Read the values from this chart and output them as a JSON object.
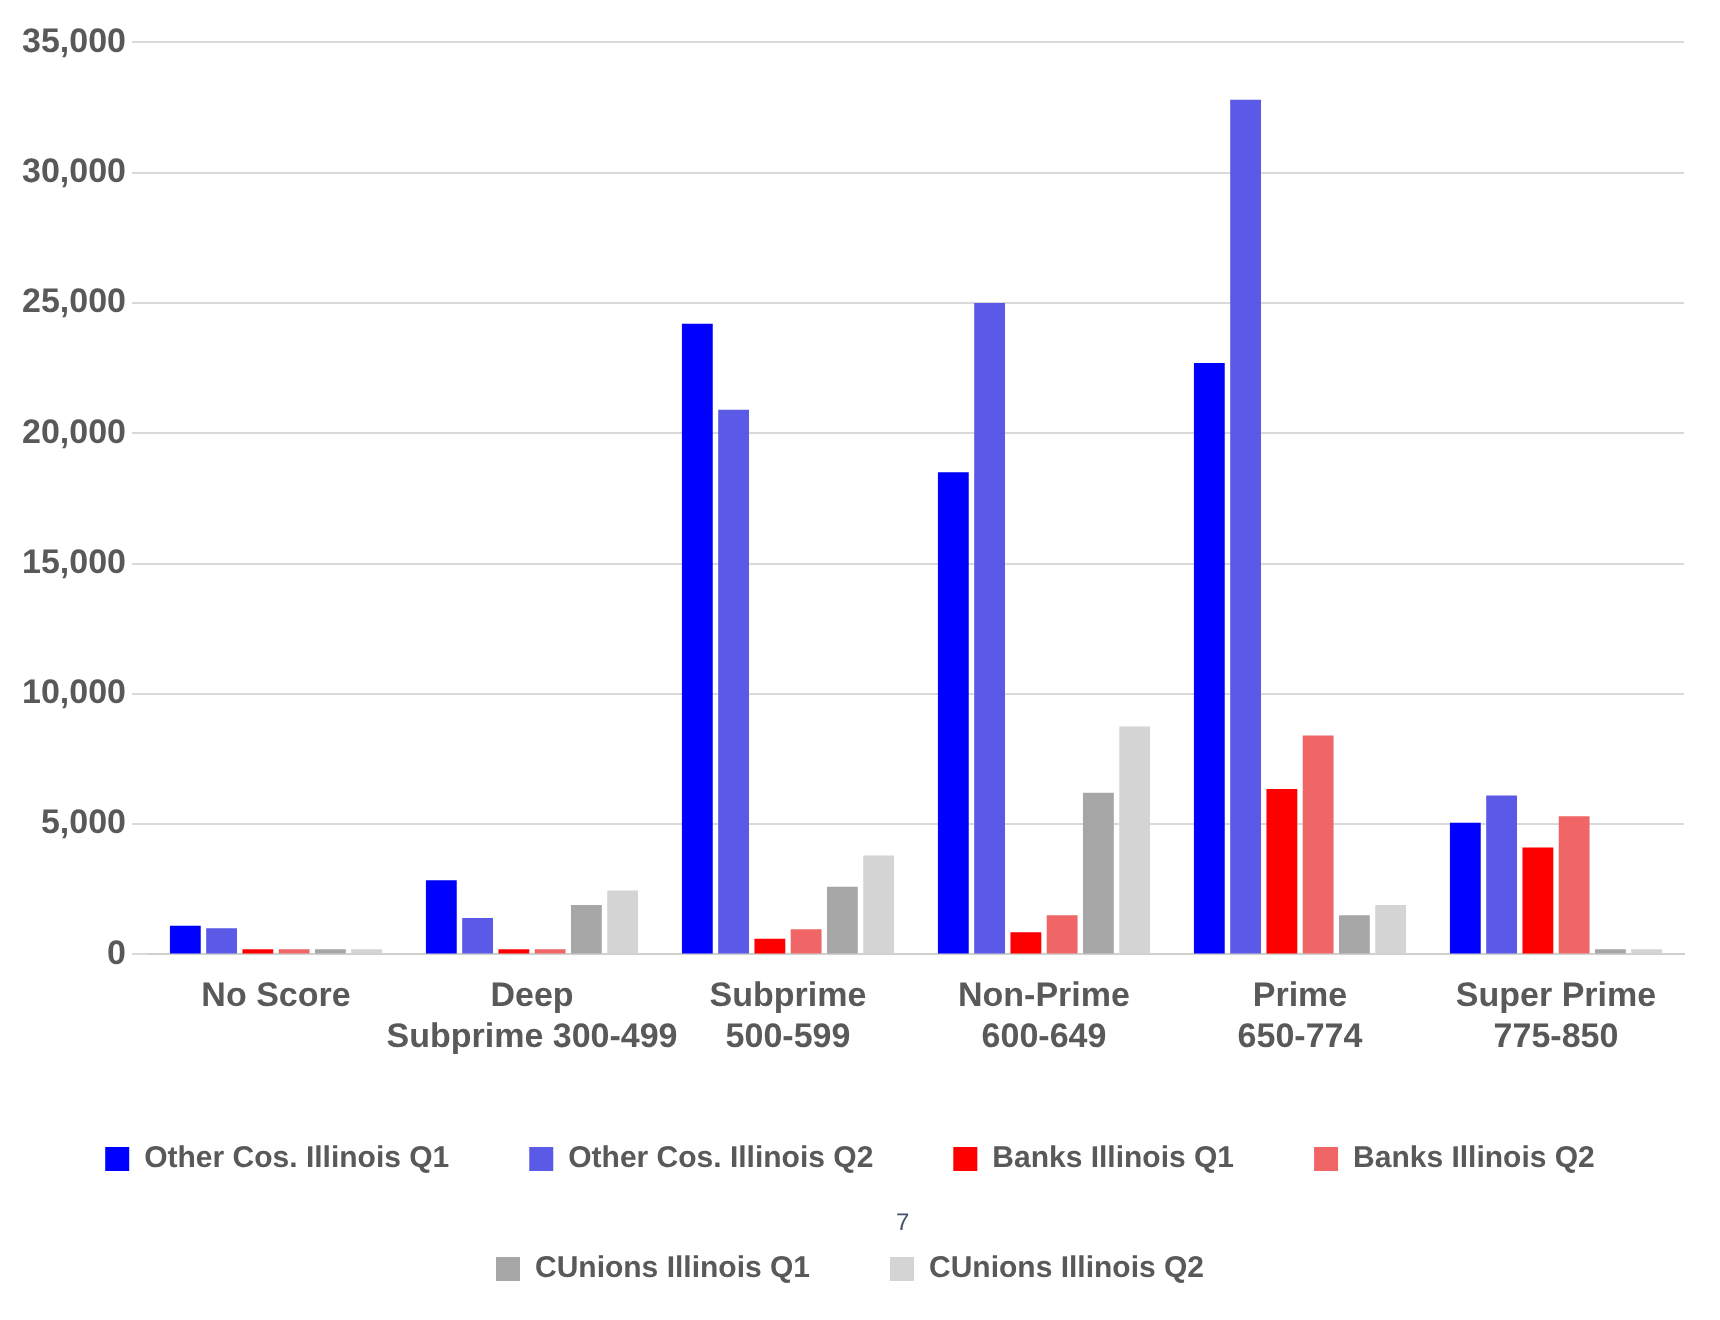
{
  "chart_data": {
    "type": "bar",
    "categories": [
      "No Score",
      "Deep Subprime 300-499",
      "Subprime 500-599",
      "Non-Prime 600-649",
      "Prime 650-774",
      "Super Prime 775-850"
    ],
    "series": [
      {
        "name": "Other Cos. Illinois Q1",
        "color": "#0000ff",
        "values": [
          1100,
          2850,
          24200,
          18500,
          22700,
          5050
        ]
      },
      {
        "name": "Other Cos. Illinois Q2",
        "color": "#5a5ae6",
        "values": [
          1000,
          1400,
          20900,
          25000,
          32800,
          6100
        ]
      },
      {
        "name": "Banks Illinois Q1",
        "color": "#ff0000",
        "values": [
          200,
          200,
          600,
          850,
          6350,
          4100
        ]
      },
      {
        "name": "Banks Illinois Q2",
        "color": "#f06666",
        "values": [
          200,
          200,
          970,
          1500,
          8400,
          5300
        ]
      },
      {
        "name": "CUnions Illinois Q1",
        "color": "#a6a6a6",
        "values": [
          200,
          1900,
          2600,
          6200,
          1500,
          200
        ]
      },
      {
        "name": "CUnions Illinois Q2",
        "color": "#d4d4d4",
        "values": [
          200,
          2450,
          3800,
          8750,
          1900,
          200
        ]
      }
    ],
    "ylim": [
      0,
      35000
    ],
    "yticks": [
      {
        "value": 0,
        "label": "0"
      },
      {
        "value": 5000,
        "label": "5,000"
      },
      {
        "value": 10000,
        "label": "10,000"
      },
      {
        "value": 15000,
        "label": "15,000"
      },
      {
        "value": 20000,
        "label": "20,000"
      },
      {
        "value": 25000,
        "label": "25,000"
      },
      {
        "value": 30000,
        "label": "30,000"
      },
      {
        "value": 35000,
        "label": "35,000"
      }
    ],
    "grid": "y",
    "legend": "bottom",
    "annotations": [
      "7"
    ]
  }
}
